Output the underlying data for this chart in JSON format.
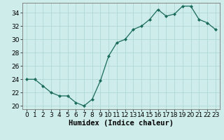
{
  "x": [
    0,
    1,
    2,
    3,
    4,
    5,
    6,
    7,
    8,
    9,
    10,
    11,
    12,
    13,
    14,
    15,
    16,
    17,
    18,
    19,
    20,
    21,
    22,
    23
  ],
  "y": [
    24.0,
    24.0,
    23.0,
    22.0,
    21.5,
    21.5,
    20.5,
    20.0,
    21.0,
    23.8,
    27.5,
    29.5,
    30.0,
    31.5,
    32.0,
    33.0,
    34.5,
    33.5,
    33.8,
    35.0,
    35.0,
    33.0,
    32.5,
    31.5
  ],
  "line_color": "#1a6b5a",
  "marker": "D",
  "marker_size": 2.0,
  "bg_color": "#cdecea",
  "grid_color": "#b0d8d5",
  "xlabel": "Humidex (Indice chaleur)",
  "ylim": [
    19.5,
    35.5
  ],
  "xlim": [
    -0.5,
    23.5
  ],
  "yticks": [
    20,
    22,
    24,
    26,
    28,
    30,
    32,
    34
  ],
  "xticks": [
    0,
    1,
    2,
    3,
    4,
    5,
    6,
    7,
    8,
    9,
    10,
    11,
    12,
    13,
    14,
    15,
    16,
    17,
    18,
    19,
    20,
    21,
    22,
    23
  ],
  "xlabel_fontsize": 7.5,
  "tick_fontsize": 6.5
}
